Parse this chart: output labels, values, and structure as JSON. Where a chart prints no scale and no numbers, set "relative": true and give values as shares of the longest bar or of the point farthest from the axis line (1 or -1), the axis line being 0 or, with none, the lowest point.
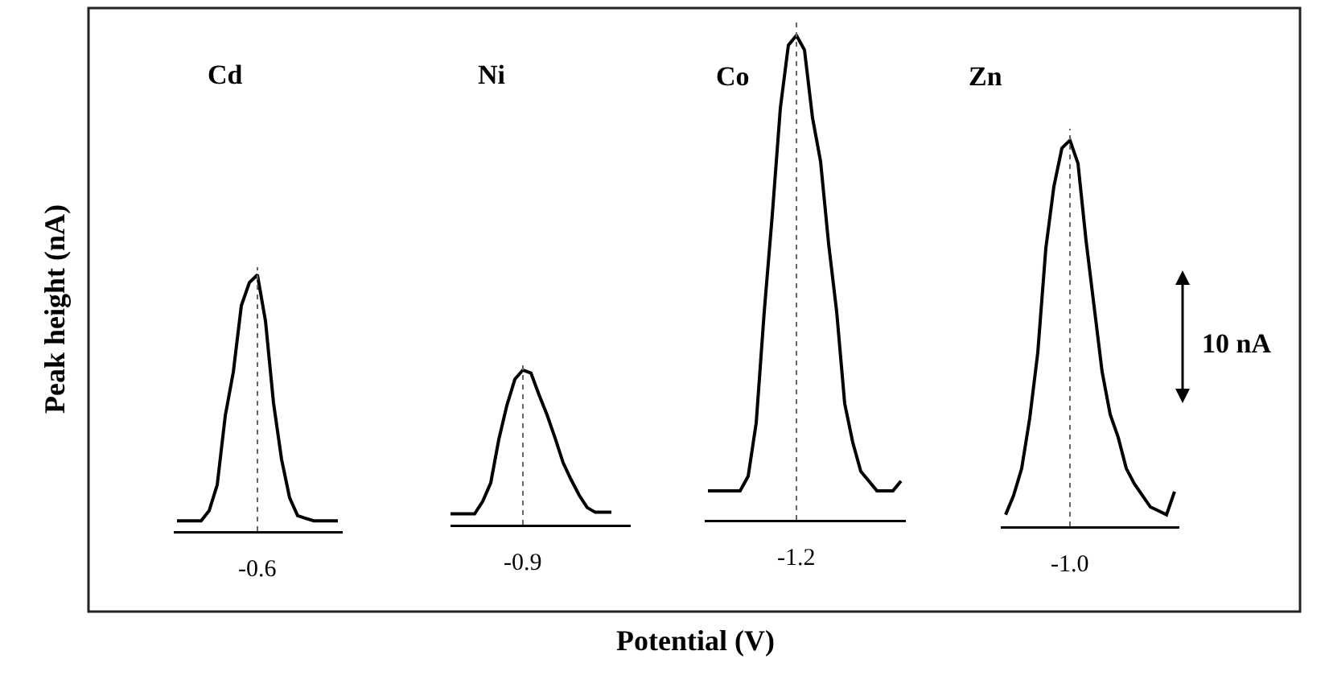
{
  "chart_data": [
    {
      "type": "line",
      "relative": true,
      "xlabel": "-0.6",
      "categories": [
        null,
        null,
        null,
        null,
        null,
        null,
        null,
        null,
        null,
        null,
        null,
        null,
        null,
        null,
        null,
        null,
        null,
        null,
        null,
        null,
        null
      ],
      "series": [
        {
          "name": "Cd",
          "color": "#000000",
          "values": [
            0.04,
            0.04,
            0.04,
            0.04,
            0.08,
            0.18,
            0.45,
            0.62,
            0.88,
            0.97,
            1.0,
            0.82,
            0.5,
            0.28,
            0.13,
            0.06,
            0.05,
            0.04,
            0.04,
            0.04,
            0.04
          ]
        }
      ]
    },
    {
      "type": "line",
      "relative": true,
      "xlabel": "-0.9",
      "categories": [
        null,
        null,
        null,
        null,
        null,
        null,
        null,
        null,
        null,
        null,
        null,
        null,
        null,
        null,
        null,
        null,
        null,
        null,
        null,
        null,
        null
      ],
      "series": [
        {
          "name": "Ni",
          "color": "#000000",
          "values": [
            0.07,
            0.07,
            0.07,
            0.07,
            0.15,
            0.27,
            0.55,
            0.77,
            0.94,
            1.0,
            0.98,
            0.84,
            0.71,
            0.56,
            0.4,
            0.29,
            0.19,
            0.11,
            0.08,
            0.08,
            0.08
          ]
        }
      ]
    },
    {
      "type": "line",
      "relative": true,
      "xlabel": "-1.2",
      "categories": [
        null,
        null,
        null,
        null,
        null,
        null,
        null,
        null,
        null,
        null,
        null,
        null,
        null,
        null,
        null,
        null,
        null,
        null,
        null,
        null,
        null,
        null,
        null,
        null,
        null
      ],
      "series": [
        {
          "name": "Co",
          "color": "#000000",
          "values": [
            0.06,
            0.06,
            0.06,
            0.06,
            0.06,
            0.09,
            0.2,
            0.43,
            0.63,
            0.85,
            0.98,
            1.0,
            0.97,
            0.83,
            0.74,
            0.57,
            0.43,
            0.24,
            0.16,
            0.1,
            0.08,
            0.06,
            0.06,
            0.06,
            0.08
          ]
        }
      ]
    },
    {
      "type": "line",
      "relative": true,
      "xlabel": "-1.0",
      "categories": [
        null,
        null,
        null,
        null,
        null,
        null,
        null,
        null,
        null,
        null,
        null,
        null,
        null,
        null,
        null,
        null,
        null,
        null,
        null,
        null,
        null,
        null
      ],
      "series": [
        {
          "name": "Zn",
          "color": "#000000",
          "values": [
            0.03,
            0.08,
            0.15,
            0.28,
            0.45,
            0.72,
            0.88,
            0.98,
            1.0,
            0.94,
            0.74,
            0.57,
            0.4,
            0.29,
            0.23,
            0.15,
            0.11,
            0.08,
            0.05,
            0.04,
            0.03,
            0.09
          ]
        }
      ]
    },
    {
      "type": "other",
      "xlabel": "Potential (V)",
      "ylabel": "Peak height (nA)",
      "annotations": [
        "10 nA"
      ]
    }
  ]
}
